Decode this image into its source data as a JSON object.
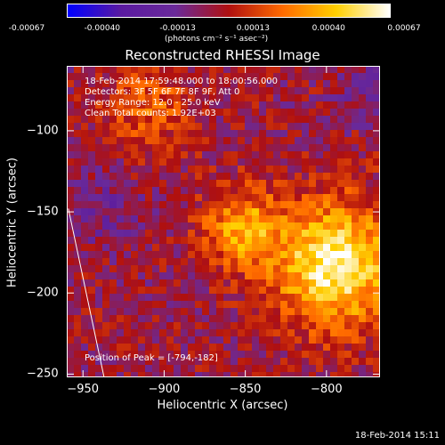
{
  "colorbar": {
    "ticks": [
      "-0.00067",
      "-0.00040",
      "-0.00013",
      "0.00013",
      "0.00040",
      "0.00067"
    ],
    "unit": "(photons cm⁻² s⁻¹ asec⁻²)"
  },
  "info": {
    "line1": "18-Feb-2014 17:59:48.000 to 18:00:56.000",
    "line2": "Detectors: 3F 5F 6F 7F 8F 9F, Att 0",
    "line3": "Energy Range: 12.0 - 25.0 keV",
    "line4": "Clean    Total counts: 1.92E+03"
  },
  "peak_text": "Position of Peak = [-794,-182]",
  "footer": "18-Feb-2014 15:11",
  "chart_data": {
    "type": "heatmap",
    "title": "Reconstructed RHESSI Image",
    "xlabel": "Heliocentric X (arcsec)",
    "ylabel": "Heliocentric Y (arcsec)",
    "xlim": [
      -960,
      -767
    ],
    "ylim": [
      -252,
      -60
    ],
    "x_ticks": [
      -950,
      -900,
      -850,
      -800
    ],
    "y_ticks": [
      -100,
      -150,
      -200,
      -250
    ],
    "x_tick_labels": [
      "−950",
      "−900",
      "−850",
      "−800"
    ],
    "y_tick_labels": [
      "−100",
      "−150",
      "−200",
      "−250"
    ],
    "color_range": [
      -0.00067,
      0.00067
    ],
    "colormap": [
      "#0000ff",
      "#5a1aa0",
      "#6a2a9a",
      "#b01010",
      "#ff6a00",
      "#ffd000",
      "#ffffff"
    ],
    "peak": [
      -794,
      -182
    ],
    "limb_line": [
      [
        -959,
        -148
      ],
      [
        -937,
        -252
      ]
    ],
    "grid": false
  }
}
